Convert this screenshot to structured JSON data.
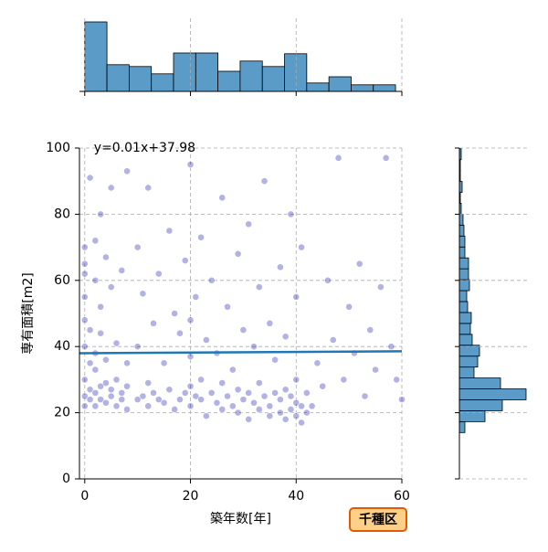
{
  "chart_data": [
    {
      "type": "scatter",
      "xlabel": "築年数[年]",
      "ylabel": "専有面積[m2]",
      "annotation": "y=0.01x+37.98",
      "badge": "千種区",
      "xlim": [
        -1,
        60
      ],
      "ylim": [
        0,
        100
      ],
      "xticks": [
        0,
        20,
        40,
        60
      ],
      "yticks": [
        0,
        20,
        40,
        60,
        80,
        100
      ],
      "grid": true,
      "color": "#0000aa",
      "fit": {
        "slope": 0.01,
        "intercept": 37.98,
        "color": "#1f77b4"
      },
      "x": [
        0,
        0,
        0,
        0,
        0,
        0,
        0,
        0,
        0,
        1,
        1,
        1,
        1,
        1,
        2,
        2,
        2,
        2,
        2,
        2,
        3,
        3,
        3,
        3,
        3,
        4,
        4,
        4,
        4,
        5,
        5,
        5,
        5,
        6,
        6,
        6,
        7,
        7,
        7,
        8,
        8,
        8,
        8,
        10,
        10,
        10,
        11,
        11,
        12,
        12,
        12,
        13,
        13,
        14,
        14,
        15,
        15,
        16,
        16,
        17,
        17,
        18,
        18,
        19,
        19,
        20,
        20,
        20,
        20,
        20,
        21,
        21,
        22,
        22,
        22,
        23,
        23,
        24,
        24,
        25,
        25,
        26,
        26,
        26,
        27,
        27,
        28,
        28,
        29,
        29,
        29,
        30,
        30,
        31,
        31,
        31,
        32,
        32,
        33,
        33,
        33,
        34,
        34,
        35,
        35,
        35,
        36,
        36,
        37,
        37,
        37,
        38,
        38,
        38,
        39,
        39,
        39,
        40,
        40,
        40,
        40,
        41,
        41,
        41,
        42,
        42,
        43,
        44,
        45,
        46,
        47,
        48,
        49,
        50,
        51,
        52,
        53,
        54,
        55,
        56,
        57,
        58,
        59,
        60
      ],
      "y": [
        22,
        25,
        30,
        40,
        48,
        55,
        62,
        65,
        70,
        24,
        27,
        35,
        45,
        91,
        22,
        26,
        33,
        38,
        60,
        72,
        24,
        28,
        44,
        52,
        80,
        23,
        29,
        36,
        67,
        25,
        27,
        58,
        88,
        22,
        30,
        41,
        24,
        26,
        63,
        21,
        28,
        35,
        93,
        24,
        40,
        70,
        25,
        56,
        22,
        29,
        88,
        26,
        47,
        24,
        62,
        23,
        35,
        27,
        75,
        21,
        50,
        24,
        44,
        26,
        66,
        22,
        28,
        37,
        48,
        95,
        25,
        55,
        24,
        30,
        73,
        19,
        42,
        26,
        60,
        23,
        38,
        21,
        29,
        85,
        25,
        52,
        22,
        33,
        20,
        27,
        68,
        24,
        45,
        18,
        26,
        77,
        23,
        40,
        21,
        29,
        58,
        25,
        90,
        19,
        22,
        47,
        26,
        36,
        20,
        24,
        64,
        18,
        27,
        43,
        21,
        25,
        80,
        19,
        23,
        30,
        55,
        17,
        22,
        70,
        20,
        26,
        22,
        35,
        28,
        60,
        42,
        97,
        30,
        52,
        38,
        65,
        25,
        45,
        33,
        58,
        97,
        40,
        30,
        24
      ]
    },
    {
      "type": "histogram",
      "orientation": "vertical",
      "color": "#5b9bc8",
      "bins": [
        0,
        4.2,
        8.4,
        12.6,
        16.8,
        21,
        25.2,
        29.4,
        33.6,
        37.8,
        42,
        46.2,
        50.4,
        54.6,
        58.8
      ],
      "counts": [
        190,
        73,
        68,
        48,
        105,
        105,
        55,
        83,
        68,
        103,
        23,
        40,
        18,
        18
      ],
      "xlim": [
        -1,
        60
      ],
      "ylim": [
        0,
        190
      ],
      "xticks": [
        0,
        20,
        40,
        60
      ]
    },
    {
      "type": "histogram",
      "orientation": "horizontal",
      "color": "#5b9bc8",
      "bins": [
        14,
        17.3,
        20.6,
        23.9,
        27.2,
        30.5,
        33.8,
        37.1,
        40.4,
        43.7,
        47,
        50.3,
        53.6,
        56.9,
        60.2,
        63.5,
        66.8,
        70.1,
        73.4,
        76.7,
        80,
        83.3,
        86.6,
        89.9,
        93.2,
        96.5,
        99.8
      ],
      "counts": [
        18,
        84,
        141,
        219,
        135,
        48,
        60,
        66,
        42,
        36,
        39,
        27,
        24,
        33,
        30,
        30,
        18,
        18,
        15,
        12,
        6,
        3,
        9,
        3,
        3,
        6
      ],
      "ylim": [
        0,
        100
      ],
      "xlim": [
        0,
        219
      ],
      "yticks": [
        0,
        20,
        40,
        60,
        80,
        100
      ]
    }
  ]
}
